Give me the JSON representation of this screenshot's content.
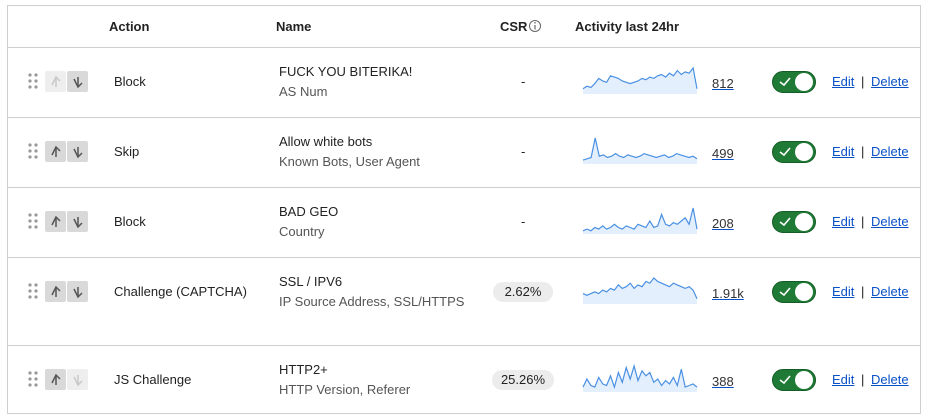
{
  "table": {
    "headers": [
      "Action",
      "Name",
      "CSR",
      "Activity last 24hr"
    ],
    "separator": "|",
    "rows": [
      {
        "action": "Block",
        "name": "FUCK YOU BITERIKA!",
        "fields": "AS Num",
        "csr": "-",
        "count": "812",
        "edit": "Edit",
        "delete": "Delete",
        "activity": [
          4,
          6,
          5,
          8,
          12,
          10,
          9,
          14,
          13,
          12,
          10,
          9,
          8,
          9,
          10,
          12,
          11,
          13,
          12,
          14,
          15,
          13,
          16,
          14,
          18,
          15,
          17,
          16,
          20,
          4
        ]
      },
      {
        "action": "Skip",
        "name": "Allow white bots",
        "fields": "Known Bots, User Agent",
        "csr": "-",
        "count": "499",
        "edit": "Edit",
        "delete": "Delete",
        "activity": [
          3,
          4,
          5,
          20,
          6,
          7,
          5,
          6,
          8,
          6,
          5,
          7,
          6,
          5,
          6,
          8,
          7,
          6,
          5,
          6,
          7,
          5,
          6,
          8,
          7,
          6,
          5,
          6,
          4
        ]
      },
      {
        "action": "Block",
        "name": "BAD GEO",
        "fields": "Country",
        "csr": "-",
        "count": "208",
        "edit": "Edit",
        "delete": "Delete",
        "activity": [
          2,
          3,
          2,
          4,
          3,
          5,
          3,
          4,
          6,
          4,
          3,
          5,
          4,
          3,
          6,
          5,
          4,
          8,
          4,
          5,
          12,
          6,
          5,
          7,
          6,
          8,
          10,
          6,
          16,
          3
        ]
      },
      {
        "action": "Challenge (CAPTCHA)",
        "name": "SSL / IPV6",
        "fields": "IP Source Address, SSL/HTTPS",
        "csr": "2.62%",
        "count": "1.91k",
        "edit": "Edit",
        "delete": "Delete",
        "activity": [
          6,
          5,
          6,
          7,
          6,
          8,
          7,
          9,
          8,
          11,
          9,
          10,
          12,
          9,
          11,
          10,
          13,
          12,
          15,
          13,
          12,
          11,
          10,
          12,
          11,
          10,
          9,
          10,
          8,
          3
        ]
      },
      {
        "action": "JS Challenge",
        "name": "HTTP2+",
        "fields": "HTTP Version, Referer",
        "csr": "25.26%",
        "count": "388",
        "edit": "Edit",
        "delete": "Delete",
        "activity": [
          3,
          8,
          4,
          3,
          9,
          5,
          4,
          10,
          3,
          12,
          6,
          15,
          8,
          16,
          7,
          13,
          10,
          12,
          6,
          8,
          4,
          7,
          5,
          9,
          4,
          14,
          3,
          4,
          5,
          3
        ]
      }
    ]
  }
}
